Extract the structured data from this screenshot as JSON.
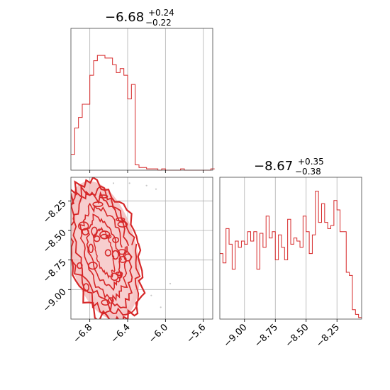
{
  "chart_data": {
    "type": "corner",
    "color": "#d62728",
    "grid": true,
    "panels": [
      {
        "id": "hist-x",
        "type": "histogram",
        "title": {
          "main": "−6.68",
          "plus": "+0.24",
          "minus": "−0.22"
        },
        "xlim": [
          -7.0,
          -5.5
        ],
        "bin_edges_start": -7.0,
        "bin_width": 0.04,
        "counts": [
          0.12,
          0.32,
          0.4,
          0.5,
          0.5,
          0.72,
          0.83,
          0.87,
          0.87,
          0.85,
          0.85,
          0.8,
          0.74,
          0.77,
          0.72,
          0.54,
          0.65,
          0.04,
          0.02,
          0.02,
          0.01,
          0.01,
          0.01,
          0.0,
          0.01,
          0.0,
          0.0,
          0.0,
          0.0,
          0.01,
          0.0,
          0.0,
          0.0,
          0.0,
          0.0,
          0.0,
          0.0,
          0.01
        ],
        "xticks": [
          -6.8,
          -6.4,
          -6.0,
          -5.6
        ]
      },
      {
        "id": "joint",
        "type": "contour",
        "xlim": [
          -7.0,
          -5.5
        ],
        "ylim": [
          -9.25,
          -8.05
        ],
        "xticks": [
          -6.8,
          -6.4,
          -6.0,
          -5.6
        ],
        "xtick_labels": [
          "−6.8",
          "−6.4",
          "−6.0",
          "−5.6"
        ],
        "yticks": [
          -8.25,
          -8.5,
          -8.75,
          -9.0
        ],
        "ytick_labels": [
          "−8.25",
          "−8.50",
          "−8.75",
          "−9.00"
        ]
      },
      {
        "id": "hist-y",
        "type": "histogram",
        "title": {
          "main": "−8.67",
          "plus": "+0.35",
          "minus": "−0.38"
        },
        "xlim": [
          -9.2,
          -8.05
        ],
        "bin_edges_start": -9.2,
        "bin_width": 0.025,
        "counts": [
          0.42,
          0.36,
          0.58,
          0.48,
          0.32,
          0.5,
          0.46,
          0.5,
          0.48,
          0.56,
          0.5,
          0.56,
          0.32,
          0.55,
          0.46,
          0.66,
          0.52,
          0.56,
          0.38,
          0.54,
          0.46,
          0.38,
          0.64,
          0.48,
          0.52,
          0.5,
          0.46,
          0.66,
          0.56,
          0.42,
          0.54,
          0.82,
          0.62,
          0.74,
          0.62,
          0.58,
          0.6,
          0.76,
          0.7,
          0.56,
          0.56,
          0.3,
          0.28,
          0.06,
          0.03,
          0.01
        ],
        "xticks": [
          -9.0,
          -8.75,
          -8.5,
          -8.25
        ],
        "xtick_labels": [
          "−9.00",
          "−8.75",
          "−8.50",
          "−8.25"
        ]
      }
    ]
  }
}
